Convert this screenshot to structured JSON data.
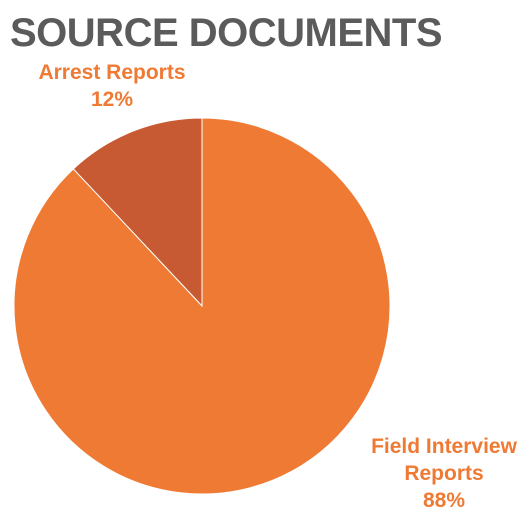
{
  "chart_data": {
    "type": "pie",
    "title": "SOURCE DOCUMENTS",
    "categories": [
      "Arrest Reports",
      "Field Interview Reports"
    ],
    "values": [
      12,
      88
    ],
    "value_labels": [
      "12%",
      "88%"
    ],
    "label_lines": [
      [
        "Arrest Reports",
        "12%"
      ],
      [
        "Field Interview",
        "Reports",
        "88%"
      ]
    ],
    "colors": [
      "#c85a33",
      "#ef7a34"
    ],
    "label_color": "#ef7a34",
    "title_color": "#5b5b5b",
    "start": "12 o'clock",
    "direction": "counterclockwise",
    "legend": "none (labels outside slices)"
  }
}
